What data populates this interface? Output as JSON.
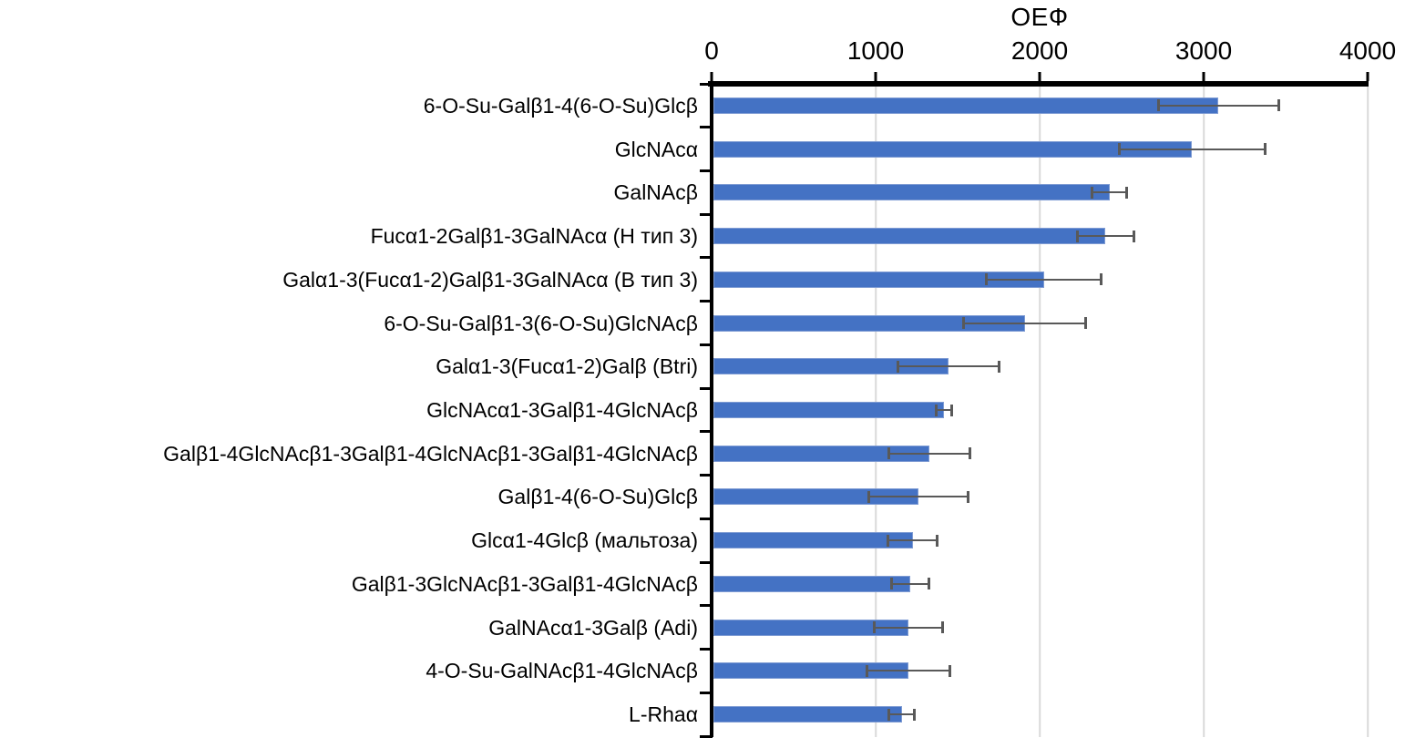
{
  "chart_data": {
    "type": "bar",
    "orientation": "horizontal",
    "title": "ОЕФ",
    "xlabel": "ОЕФ",
    "ylabel": "",
    "xlim": [
      0,
      4000
    ],
    "xticks": [
      0,
      1000,
      2000,
      3000,
      4000
    ],
    "xtick_labels": [
      "0",
      "1000",
      "2000",
      "3000",
      "4000"
    ],
    "grid": "vertical-light-gray",
    "axis_position": "top",
    "legend": null,
    "categories": [
      "6-O-Su-Galβ1-4(6-O-Su)Glcβ",
      "GlcNAcα",
      "GalNAcβ",
      "Fucα1-2Galβ1-3GalNAcα  (Н тип 3)",
      "Galα1-3(Fucα1-2)Galβ1-3GalNAcα  (В тип 3)",
      "6-O-Su-Galβ1-3(6-O-Su)GlcNAcβ",
      "Galα1-3(Fucα1-2)Galβ  (Btri)",
      "GlcNAcα1-3Galβ1-4GlcNAcβ",
      "Galβ1-4GlcNAcβ1-3Galβ1-4GlcNAcβ1-3Galβ1-4GlcNAcβ",
      "Galβ1-4(6-O-Su)Glcβ",
      "Glcα1-4Glcβ  (мальтоза)",
      "Galβ1-3GlcNAcβ1-3Galβ1-4GlcNAcβ",
      "GalNAcα1-3Galβ  (Adi)",
      "4-O-Su-GalNAcβ1-4GlcNAcβ",
      "L-Rhaα"
    ],
    "values": [
      3090,
      2930,
      2425,
      2400,
      2025,
      1910,
      1445,
      1415,
      1330,
      1260,
      1225,
      1210,
      1200,
      1200,
      1160
    ],
    "errors": [
      370,
      445,
      110,
      175,
      355,
      375,
      310,
      50,
      250,
      305,
      155,
      115,
      210,
      255,
      80
    ],
    "colors": {
      "bar_fill": "#4472C4",
      "bar_border": "#7E9BD3",
      "error_bar": "#595959",
      "gridline": "#D9D9D9",
      "axis": "#000000",
      "background": "#FFFFFF"
    }
  }
}
